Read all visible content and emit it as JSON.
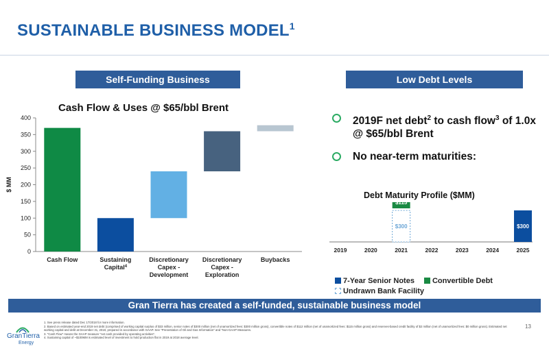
{
  "slide": {
    "title": "SUSTAINABLE BUSINESS MODEL",
    "title_sup": "1",
    "page_number": "13"
  },
  "left_section": {
    "header": "Self-Funding Business"
  },
  "right_section": {
    "header": "Low Debt Levels",
    "bullets": [
      {
        "pre": "2019F net debt",
        "sup1": "2",
        "mid": " to cash flow",
        "sup2": "3",
        "post": " of 1.0x @ $65/bbl Brent"
      },
      {
        "pre": "No near-term maturities:",
        "sup1": "",
        "mid": "",
        "sup2": "",
        "post": ""
      }
    ]
  },
  "bottom_banner": "Gran Tierra has created a self-funded, sustainable business model",
  "logo": {
    "name": "GranTierra",
    "sub": "Energy"
  },
  "footnotes": [
    "1. See press release dated Dec 17/2018 for more information.",
    "2. Based on estimated year-end 2019 net debt (comprised of working capital surplus of $33 million, senior notes of $300 million (net of unamortized fees: $300 million gross), convertible notes of $112 million (net of unamortized fees: $115 million gross) and reserves-based credit facility of $2 million (net of unamortized fees: $0 million gross). Estimated net working capital and debt at December 31, 2018, prepared in accordance with GAAP. See \"Presentation of Oil and Gas Information\" and \"Non-GAAP Measures.",
    "3. \"Cash Flow\" means the GAAP measure \"net cash provided by operating activities\".",
    "4. Sustaining capital of ~$100MM is estimated level of investment to hold production flat in 2019 at 2018 average level."
  ],
  "chart_data": [
    {
      "type": "bar",
      "title": "Cash Flow & Uses @ $65/bbl Brent",
      "ylabel": "$ MM",
      "ylim": [
        0,
        400
      ],
      "yticks": [
        0,
        50,
        100,
        150,
        200,
        250,
        300,
        350,
        400
      ],
      "categories": [
        {
          "lines": [
            "Cash Flow"
          ],
          "sup": ""
        },
        {
          "lines": [
            "Sustaining",
            "Capital"
          ],
          "sup": "4"
        },
        {
          "lines": [
            "Discretionary",
            "Capex -",
            "Development"
          ],
          "sup": ""
        },
        {
          "lines": [
            "Discretionary",
            "Capex -",
            "Exploration"
          ],
          "sup": ""
        },
        {
          "lines": [
            "Buybacks"
          ],
          "sup": ""
        }
      ],
      "bars": [
        {
          "start": 0,
          "end": 370,
          "color": "#0f8a45"
        },
        {
          "start": 0,
          "end": 100,
          "color": "#0c4e9f"
        },
        {
          "start": 100,
          "end": 240,
          "color": "#62b0e4"
        },
        {
          "start": 240,
          "end": 360,
          "color": "#47627f"
        },
        {
          "start": 360,
          "end": 378,
          "color": "#b8c6d1"
        }
      ],
      "grid": false,
      "legend": "none"
    },
    {
      "type": "bar",
      "title": "Debt Maturity Profile ($MM)",
      "x": [
        "2019",
        "2020",
        "2021",
        "2022",
        "2023",
        "2024",
        "2025"
      ],
      "ylim": [
        0,
        475
      ],
      "stacks": [
        {
          "year": "2021",
          "segments": [
            {
              "series": "Undrawn Bank Facility",
              "value": 300,
              "label": "$300"
            },
            {
              "series": "Convertible Debt",
              "value": 115,
              "label": "$115"
            }
          ]
        },
        {
          "year": "2025",
          "segments": [
            {
              "series": "7-Year Senior Notes",
              "value": 300,
              "label": "$300"
            }
          ]
        }
      ],
      "series": [
        {
          "name": "7-Year Senior Notes",
          "color": "#0c4e9f"
        },
        {
          "name": "Convertible Debt",
          "color": "#1a8a43"
        },
        {
          "name": "Undrawn Bank Facility",
          "color": "#6aa5d6"
        }
      ],
      "legend": "bottom"
    }
  ]
}
